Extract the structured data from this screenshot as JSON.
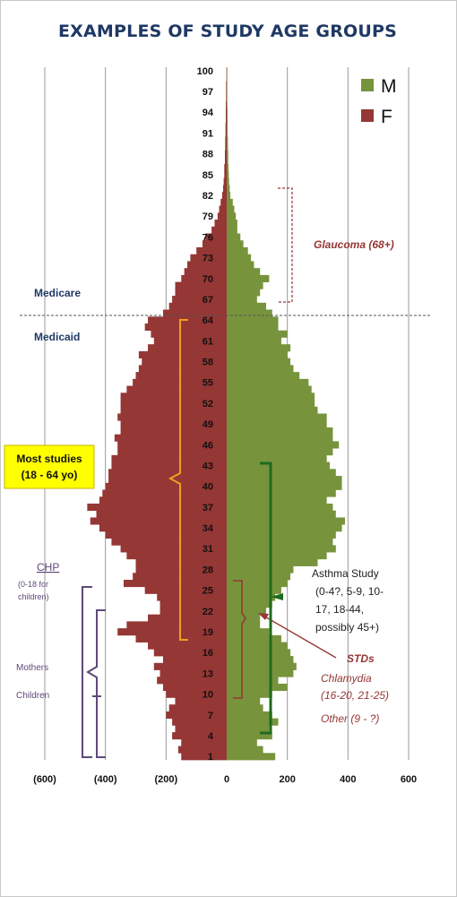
{
  "chart_data": {
    "type": "bar",
    "orientation": "horizontal",
    "layout": "population-pyramid",
    "title": "EXAMPLES OF STUDY AGE GROUPS",
    "x_ticks": [
      "(600)",
      "(400)",
      "(200)",
      "0",
      "200",
      "400",
      "600"
    ],
    "xlim": [
      -600,
      600
    ],
    "y_ticks": [
      "1",
      "4",
      "7",
      "10",
      "13",
      "16",
      "19",
      "22",
      "25",
      "28",
      "31",
      "34",
      "37",
      "40",
      "43",
      "46",
      "49",
      "52",
      "55",
      "58",
      "61",
      "64",
      "67",
      "70",
      "73",
      "76",
      "79",
      "82",
      "85",
      "88",
      "91",
      "94",
      "97",
      "100"
    ],
    "ylim": [
      0,
      100
    ],
    "grid": "vertical",
    "legend_position": "top-right",
    "colors": {
      "M": "#77933c",
      "F": "#953735"
    },
    "series": [
      {
        "name": "M",
        "values": [
          160,
          120,
          100,
          150,
          140,
          170,
          150,
          120,
          110,
          150,
          200,
          170,
          220,
          230,
          220,
          210,
          200,
          180,
          140,
          110,
          110,
          130,
          150,
          160,
          180,
          200,
          210,
          220,
          300,
          330,
          360,
          350,
          360,
          380,
          390,
          360,
          350,
          330,
          360,
          380,
          380,
          360,
          340,
          330,
          350,
          370,
          350,
          350,
          330,
          330,
          300,
          290,
          290,
          280,
          270,
          240,
          220,
          210,
          200,
          210,
          180,
          200,
          170,
          170,
          150,
          130,
          100,
          110,
          120,
          140,
          110,
          90,
          80,
          70,
          55,
          45,
          35,
          35,
          30,
          25,
          20,
          12,
          10,
          8,
          7,
          6,
          5,
          5,
          4,
          4,
          3,
          3,
          3,
          3,
          2,
          2,
          2,
          2,
          2,
          2
        ]
      },
      {
        "name": "F",
        "values": [
          -150,
          -160,
          -150,
          -180,
          -170,
          -180,
          -200,
          -190,
          -170,
          -200,
          -210,
          -230,
          -220,
          -240,
          -210,
          -240,
          -260,
          -300,
          -360,
          -330,
          -260,
          -220,
          -220,
          -230,
          -270,
          -340,
          -310,
          -300,
          -300,
          -330,
          -350,
          -380,
          -400,
          -420,
          -450,
          -430,
          -460,
          -420,
          -410,
          -400,
          -390,
          -390,
          -380,
          -380,
          -360,
          -360,
          -370,
          -350,
          -350,
          -360,
          -350,
          -350,
          -350,
          -330,
          -310,
          -300,
          -290,
          -280,
          -290,
          -260,
          -240,
          -250,
          -270,
          -260,
          -210,
          -190,
          -180,
          -170,
          -170,
          -150,
          -140,
          -130,
          -120,
          -100,
          -80,
          -70,
          -50,
          -40,
          -30,
          -25,
          -20,
          -15,
          -12,
          -10,
          -8,
          -8,
          -6,
          -6,
          -5,
          -5,
          -4,
          -4,
          -3,
          -3,
          -3,
          -2,
          -2,
          -2,
          -1,
          -1
        ]
      }
    ],
    "annotations": {
      "medicare": "Medicare",
      "medicaid": "Medicaid",
      "most_studies_line1": "Most studies",
      "most_studies_line2": "(18 - 64 yo)",
      "glaucoma": "Glaucoma (68+)",
      "chp": "CHP",
      "chp_sub1": "(0-18 for",
      "chp_sub2": "children)",
      "mothers": "Mothers",
      "children": "Children",
      "asthma_line1": "Asthma Study",
      "asthma_line2": "(0-4?, 5-9, 10-",
      "asthma_line3": "17, 18-44,",
      "asthma_line4": "possibly 45+)",
      "stds": "STDs",
      "chlamydia_line1": "Chlamydia",
      "chlamydia_line2": "(16-20, 21-25)",
      "other": "Other (9 - ?)"
    }
  }
}
